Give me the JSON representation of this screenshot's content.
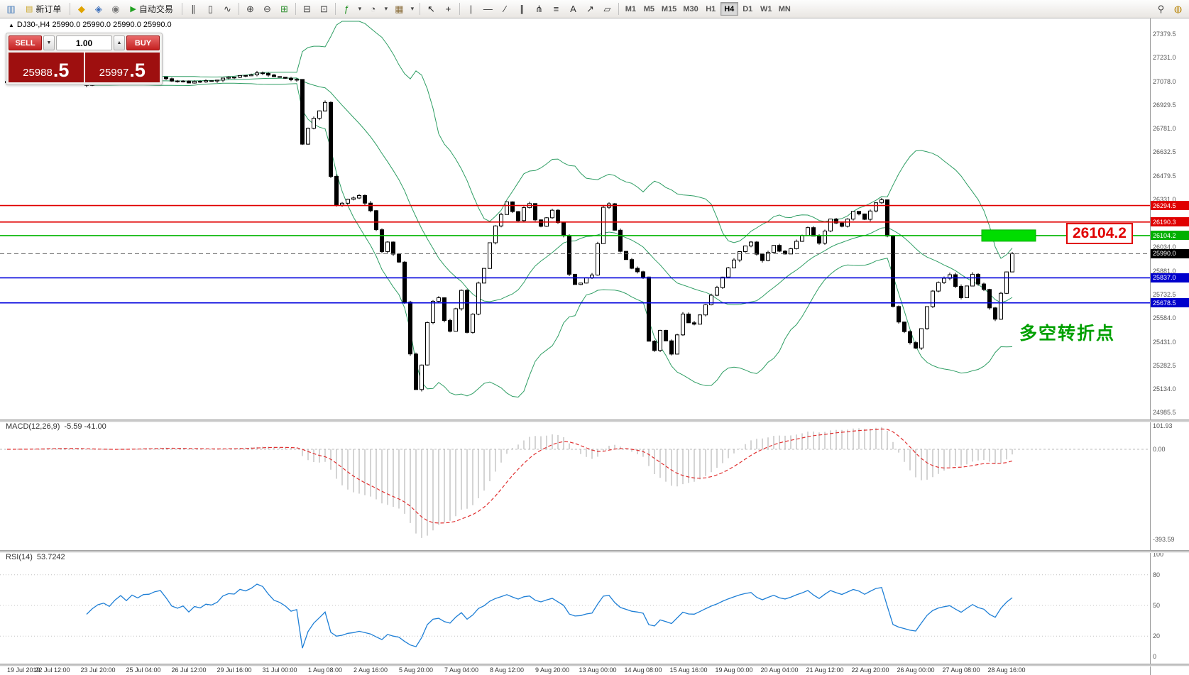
{
  "toolbar": {
    "items": [
      {
        "t": "icon",
        "name": "new-chart-icon",
        "g": "▥",
        "c": "#4a7ebb"
      },
      {
        "t": "btn",
        "name": "new-order-button",
        "g": "▤",
        "gc": "#caa526",
        "label": "新订单"
      },
      {
        "t": "sep"
      },
      {
        "t": "icon",
        "name": "market-watch-icon",
        "g": "◆",
        "c": "#e0a400"
      },
      {
        "t": "icon",
        "name": "navigator-icon",
        "g": "◈",
        "c": "#3a6ebb"
      },
      {
        "t": "icon",
        "name": "terminal-icon",
        "g": "◉",
        "c": "#777777"
      },
      {
        "t": "btn",
        "name": "auto-trading-button",
        "g": "▶",
        "gc": "#21a121",
        "label": "自动交易"
      },
      {
        "t": "sep"
      },
      {
        "t": "icon",
        "name": "bar-chart-icon",
        "g": "∥",
        "c": "#444444"
      },
      {
        "t": "icon",
        "name": "candlestick-chart-icon",
        "g": "▯",
        "c": "#444444"
      },
      {
        "t": "icon",
        "name": "line-chart-icon",
        "g": "∿",
        "c": "#444444"
      },
      {
        "t": "sep"
      },
      {
        "t": "icon",
        "name": "zoom-in-icon",
        "g": "⊕",
        "c": "#444444"
      },
      {
        "t": "icon",
        "name": "zoom-out-icon",
        "g": "⊖",
        "c": "#444444"
      },
      {
        "t": "icon",
        "name": "tile-windows-icon",
        "g": "⊞",
        "c": "#2f8f2f"
      },
      {
        "t": "sep"
      },
      {
        "t": "icon",
        "name": "cascade-windows-icon",
        "g": "⊟",
        "c": "#444444"
      },
      {
        "t": "icon",
        "name": "arrange-windows-icon",
        "g": "⊡",
        "c": "#444444"
      },
      {
        "t": "sep"
      },
      {
        "t": "icon",
        "name": "indicators-icon",
        "g": "ƒ",
        "c": "#1f8f1f"
      },
      {
        "t": "icon",
        "name": "indicators-dropdown-icon",
        "g": "▾",
        "c": "#444444",
        "narrow": true
      },
      {
        "t": "icon",
        "name": "periods-icon",
        "g": "◔",
        "c": "#444444"
      },
      {
        "t": "icon",
        "name": "periods-dropdown-icon",
        "g": "▾",
        "c": "#444444",
        "narrow": true
      },
      {
        "t": "icon",
        "name": "templates-icon",
        "g": "▦",
        "c": "#8a6d3b"
      },
      {
        "t": "icon",
        "name": "templates-dropdown-icon",
        "g": "▾",
        "c": "#444444",
        "narrow": true
      },
      {
        "t": "sep"
      },
      {
        "t": "icon",
        "name": "cursor-icon",
        "g": "↖",
        "c": "#222222"
      },
      {
        "t": "icon",
        "name": "crosshair-icon",
        "g": "+",
        "c": "#222222"
      },
      {
        "t": "sep"
      },
      {
        "t": "icon",
        "name": "vertical-line-icon",
        "g": "|",
        "c": "#333333"
      },
      {
        "t": "icon",
        "name": "horizontal-line-icon",
        "g": "—",
        "c": "#333333"
      },
      {
        "t": "icon",
        "name": "trendline-icon",
        "g": "∕",
        "c": "#333333"
      },
      {
        "t": "icon",
        "name": "channel-icon",
        "g": "∥",
        "c": "#333333"
      },
      {
        "t": "icon",
        "name": "pitchfork-icon",
        "g": "⋔",
        "c": "#333333"
      },
      {
        "t": "icon",
        "name": "fibonacci-icon",
        "g": "≡",
        "c": "#333333"
      },
      {
        "t": "icon",
        "name": "text-label-icon",
        "g": "A",
        "c": "#333333"
      },
      {
        "t": "icon",
        "name": "arrow-tool-icon",
        "g": "↗",
        "c": "#333333"
      },
      {
        "t": "icon",
        "name": "shapes-icon",
        "g": "▱",
        "c": "#333333"
      },
      {
        "t": "sep"
      },
      {
        "t": "tfgroup"
      },
      {
        "t": "spacer"
      },
      {
        "t": "icon",
        "name": "search-icon",
        "g": "⚲",
        "c": "#444444"
      },
      {
        "t": "icon",
        "name": "community-icon",
        "g": "◍",
        "c": "#b8860b"
      }
    ],
    "timeframes": [
      "M1",
      "M5",
      "M15",
      "M30",
      "H1",
      "H4",
      "D1",
      "W1",
      "MN"
    ],
    "active_timeframe": "H4"
  },
  "chart": {
    "menu_glyph": "▲",
    "symbol_info": "DJ30-,H4  25990.0 25990.0 25990.0 25990.0",
    "annotation": "多空转折点",
    "callout": "26104.2",
    "trade_panel": {
      "sell_label": "SELL",
      "buy_label": "BUY",
      "volume": "1.00",
      "down_glyph": "▼",
      "up_glyph": "▲",
      "sell_price_main": "25988",
      "sell_price_frac": ".5",
      "buy_price_main": "25997",
      "buy_price_frac": ".5"
    }
  },
  "chart_data": {
    "type": "candlestick",
    "symbol": "DJ30-",
    "timeframe": "H4",
    "n_candles": 178,
    "current_price": 25990.0,
    "close_waypoints": [
      [
        0,
        27070
      ],
      [
        8,
        27095
      ],
      [
        14,
        27060
      ],
      [
        20,
        27085
      ],
      [
        26,
        27110
      ],
      [
        32,
        27070
      ],
      [
        38,
        27100
      ],
      [
        44,
        27130
      ],
      [
        48,
        27110
      ],
      [
        51,
        27090
      ],
      [
        52,
        26680
      ],
      [
        53,
        26780
      ],
      [
        55,
        26900
      ],
      [
        56,
        26940
      ],
      [
        57,
        26480
      ],
      [
        58,
        26290
      ],
      [
        60,
        26340
      ],
      [
        62,
        26360
      ],
      [
        64,
        26260
      ],
      [
        66,
        26010
      ],
      [
        67,
        26060
      ],
      [
        68,
        25980
      ],
      [
        69,
        25940
      ],
      [
        70,
        25680
      ],
      [
        71,
        25360
      ],
      [
        72,
        25130
      ],
      [
        73,
        25280
      ],
      [
        74,
        25560
      ],
      [
        75,
        25680
      ],
      [
        76,
        25710
      ],
      [
        77,
        25560
      ],
      [
        78,
        25500
      ],
      [
        79,
        25640
      ],
      [
        80,
        25760
      ],
      [
        81,
        25490
      ],
      [
        82,
        25610
      ],
      [
        83,
        25800
      ],
      [
        84,
        25900
      ],
      [
        85,
        26060
      ],
      [
        86,
        26160
      ],
      [
        88,
        26310
      ],
      [
        89,
        26250
      ],
      [
        90,
        26200
      ],
      [
        91,
        26280
      ],
      [
        92,
        26310
      ],
      [
        93,
        26210
      ],
      [
        94,
        26160
      ],
      [
        95,
        26220
      ],
      [
        96,
        26260
      ],
      [
        97,
        26180
      ],
      [
        98,
        26110
      ],
      [
        99,
        25860
      ],
      [
        100,
        25790
      ],
      [
        101,
        25810
      ],
      [
        102,
        25830
      ],
      [
        103,
        25860
      ],
      [
        104,
        26050
      ],
      [
        105,
        26280
      ],
      [
        106,
        26310
      ],
      [
        107,
        26140
      ],
      [
        108,
        26010
      ],
      [
        109,
        25950
      ],
      [
        110,
        25900
      ],
      [
        111,
        25880
      ],
      [
        112,
        25840
      ],
      [
        113,
        25430
      ],
      [
        114,
        25380
      ],
      [
        115,
        25500
      ],
      [
        116,
        25440
      ],
      [
        117,
        25360
      ],
      [
        118,
        25470
      ],
      [
        119,
        25610
      ],
      [
        120,
        25560
      ],
      [
        121,
        25540
      ],
      [
        122,
        25600
      ],
      [
        123,
        25660
      ],
      [
        125,
        25780
      ],
      [
        127,
        25900
      ],
      [
        129,
        26010
      ],
      [
        131,
        26060
      ],
      [
        132,
        25990
      ],
      [
        133,
        25950
      ],
      [
        135,
        26050
      ],
      [
        136,
        26010
      ],
      [
        137,
        25980
      ],
      [
        139,
        26060
      ],
      [
        141,
        26160
      ],
      [
        142,
        26100
      ],
      [
        143,
        26060
      ],
      [
        145,
        26210
      ],
      [
        147,
        26160
      ],
      [
        149,
        26260
      ],
      [
        151,
        26210
      ],
      [
        153,
        26310
      ],
      [
        154,
        26330
      ],
      [
        155,
        26100
      ],
      [
        156,
        25660
      ],
      [
        157,
        25560
      ],
      [
        158,
        25500
      ],
      [
        159,
        25430
      ],
      [
        160,
        25390
      ],
      [
        161,
        25520
      ],
      [
        162,
        25660
      ],
      [
        163,
        25750
      ],
      [
        164,
        25810
      ],
      [
        165,
        25840
      ],
      [
        166,
        25860
      ],
      [
        167,
        25790
      ],
      [
        168,
        25710
      ],
      [
        169,
        25790
      ],
      [
        170,
        25860
      ],
      [
        171,
        25800
      ],
      [
        172,
        25760
      ],
      [
        173,
        25640
      ],
      [
        174,
        25570
      ],
      [
        175,
        25740
      ],
      [
        176,
        25880
      ],
      [
        177,
        25985
      ]
    ],
    "price_axis": {
      "top_value": 27379.5,
      "bottom_value": 24985.5,
      "labels": [
        27379.5,
        27231.0,
        27078.0,
        26929.5,
        26781.0,
        26632.5,
        26479.5,
        26331.0,
        26182.5,
        26034.0,
        25881.0,
        25732.5,
        25584.0,
        25431.0,
        25282.5,
        25134.0,
        24985.5
      ]
    },
    "levels": [
      {
        "name": "resistance-line-1",
        "value": 26294.5,
        "color": "#e00000",
        "tag_color": "#e00000",
        "style": "solid"
      },
      {
        "name": "resistance-line-2",
        "value": 26190.3,
        "color": "#e00000",
        "tag_color": "#e00000",
        "style": "solid"
      },
      {
        "name": "key-level-line",
        "value": 26104.2,
        "color": "#00b400",
        "tag_color": "#00b000",
        "style": "solid"
      },
      {
        "name": "current-price-line",
        "value": 25990.0,
        "color": "#666666",
        "tag_color": "#000000",
        "style": "dashed"
      },
      {
        "name": "support-line-1",
        "value": 25837.0,
        "color": "#0000dd",
        "tag_color": "#0000cc",
        "style": "solid"
      },
      {
        "name": "support-line-2",
        "value": 25678.5,
        "color": "#0000dd",
        "tag_color": "#0000cc",
        "style": "solid"
      }
    ],
    "bollinger": {
      "period": 20,
      "deviation": 2,
      "color": "#2f9e64"
    },
    "highlight": {
      "price": 26104.2,
      "label": "26104.2",
      "color": "#00dd00"
    },
    "macd": {
      "label": "MACD(12,26,9)",
      "value_text": "-5.59 -41.00",
      "fast": 12,
      "slow": 26,
      "signal": 9,
      "axis_values": [
        101.93,
        0,
        -393.59
      ],
      "axis_labels": [
        "101.93",
        "0.00",
        "-393.59"
      ]
    },
    "rsi": {
      "label": "RSI(14)",
      "value_text": "53.7242",
      "period": 14,
      "axis_values": [
        100,
        80,
        50,
        20,
        0
      ],
      "levels": [
        80,
        50,
        20
      ]
    },
    "time_labels": [
      "19 Jul 2019",
      "22 Jul 12:00",
      "23 Jul 20:00",
      "25 Jul 04:00",
      "26 Jul 12:00",
      "29 Jul 16:00",
      "31 Jul 00:00",
      "1 Aug 08:00",
      "2 Aug 16:00",
      "5 Aug 20:00",
      "7 Aug 04:00",
      "8 Aug 12:00",
      "9 Aug 20:00",
      "13 Aug 00:00",
      "14 Aug 08:00",
      "15 Aug 16:00",
      "19 Aug 00:00",
      "20 Aug 04:00",
      "21 Aug 12:00",
      "22 Aug 20:00",
      "26 Aug 00:00",
      "27 Aug 08:00",
      "28 Aug 16:00"
    ]
  }
}
